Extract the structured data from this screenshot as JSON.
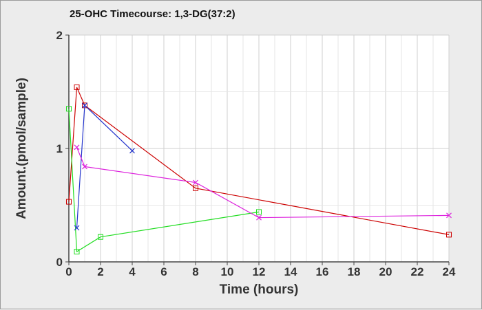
{
  "chart_data": {
    "type": "line",
    "title": "25-OHC Timecourse: 1,3-DG(37:2)",
    "xlabel": "Time (hours)",
    "ylabel": "Amount.(pmol/sample)",
    "xlim": [
      0,
      24
    ],
    "ylim": [
      0,
      2
    ],
    "x_ticks": [
      0,
      2,
      4,
      6,
      8,
      10,
      12,
      14,
      16,
      18,
      20,
      22,
      24
    ],
    "y_ticks": [
      0,
      1,
      2
    ],
    "x_minor_step": 1,
    "y_minor_step": 0.5,
    "grid": true,
    "series": [
      {
        "color": "#cc0000",
        "marker": "square",
        "x": [
          0,
          0.5,
          1,
          8,
          24
        ],
        "y": [
          0.53,
          1.54,
          1.38,
          0.65,
          0.24
        ]
      },
      {
        "color": "#22dd22",
        "marker": "square",
        "x": [
          0,
          0.5,
          2,
          12
        ],
        "y": [
          1.35,
          0.09,
          0.22,
          0.44
        ]
      },
      {
        "color": "#2233cc",
        "marker": "x",
        "x": [
          0.5,
          1,
          4
        ],
        "y": [
          0.3,
          1.38,
          0.98
        ]
      },
      {
        "color": "#dd22dd",
        "marker": "x",
        "x": [
          0.5,
          1,
          8,
          12,
          24
        ],
        "y": [
          1.01,
          0.84,
          0.7,
          0.39,
          0.41
        ]
      }
    ]
  }
}
